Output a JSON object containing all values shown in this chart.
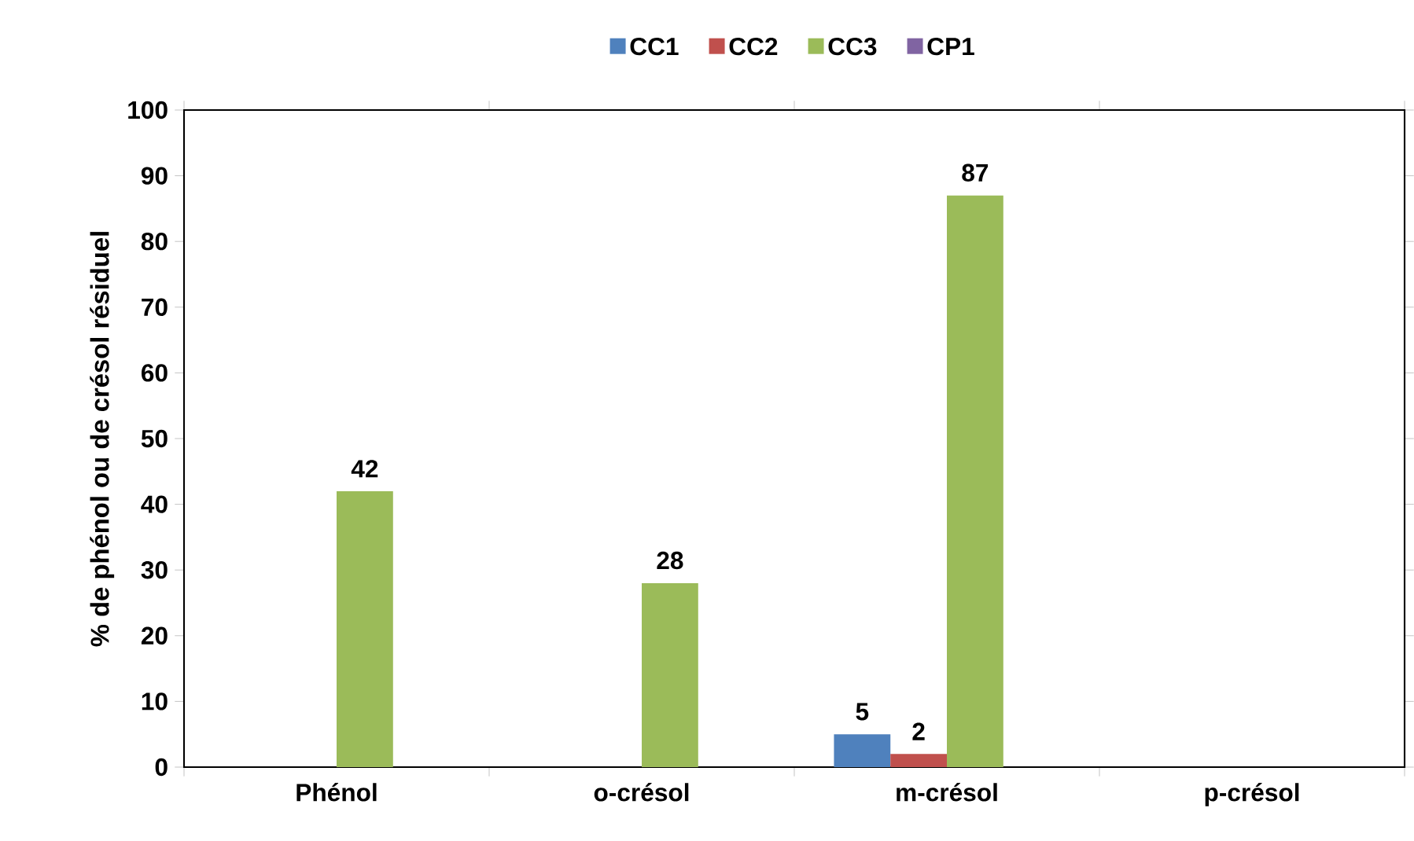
{
  "chart_data": {
    "type": "bar",
    "ylabel": "% de phénol ou de crésol résiduel",
    "categories": [
      "Phénol",
      "o-crésol",
      "m-crésol",
      "p-crésol"
    ],
    "series": [
      {
        "name": "CC1",
        "color": "#4f81bd",
        "values": [
          0,
          0,
          5,
          0
        ],
        "value_labels": [
          null,
          null,
          "5",
          null
        ]
      },
      {
        "name": "CC2",
        "color": "#c0504d",
        "values": [
          0,
          0,
          2,
          0
        ],
        "value_labels": [
          null,
          null,
          "2",
          null
        ]
      },
      {
        "name": "CC3",
        "color": "#9bbb59",
        "values": [
          42,
          28,
          87,
          0
        ],
        "value_labels": [
          "42",
          "28",
          "87",
          null
        ]
      },
      {
        "name": "CP1",
        "color": "#8064a2",
        "values": [
          0,
          0,
          0,
          0
        ],
        "value_labels": [
          null,
          null,
          null,
          null
        ]
      }
    ],
    "ylim": [
      0,
      100
    ],
    "yticks": [
      0,
      10,
      20,
      30,
      40,
      50,
      60,
      70,
      80,
      90,
      100
    ],
    "legend": "top"
  }
}
